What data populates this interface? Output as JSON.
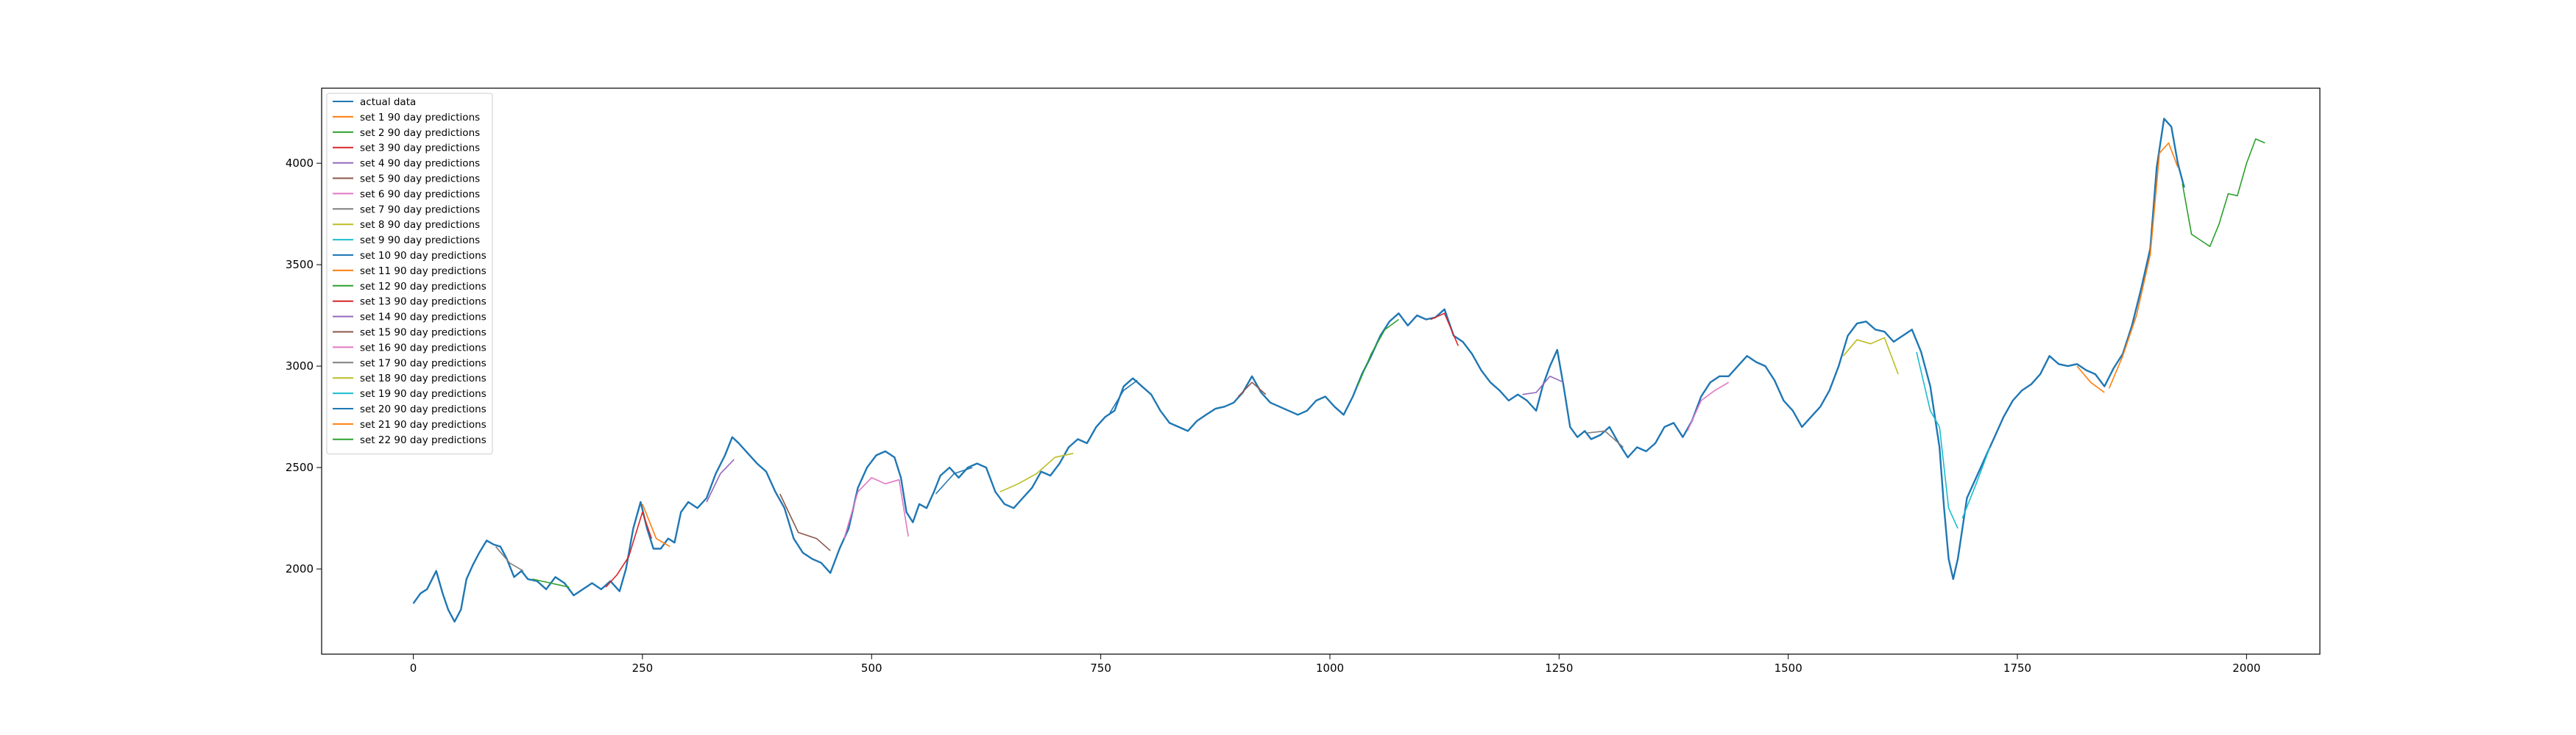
{
  "chart_data": {
    "type": "line",
    "title": "",
    "xlabel": "",
    "ylabel": "",
    "xlim": [
      -100,
      2080
    ],
    "ylim": [
      1580,
      4370
    ],
    "xticks": [
      0,
      250,
      500,
      750,
      1000,
      1250,
      1500,
      1750,
      2000
    ],
    "yticks": [
      2000,
      2500,
      3000,
      3500,
      4000
    ],
    "grid": false,
    "legend_position": "top-left",
    "actual": {
      "name": "actual data",
      "color": "#1f77b4",
      "points": [
        [
          0,
          1830
        ],
        [
          8,
          1880
        ],
        [
          15,
          1900
        ],
        [
          25,
          1990
        ],
        [
          32,
          1880
        ],
        [
          38,
          1800
        ],
        [
          45,
          1740
        ],
        [
          52,
          1800
        ],
        [
          58,
          1950
        ],
        [
          65,
          2020
        ],
        [
          72,
          2080
        ],
        [
          80,
          2140
        ],
        [
          88,
          2120
        ],
        [
          95,
          2110
        ],
        [
          102,
          2050
        ],
        [
          110,
          1960
        ],
        [
          118,
          1990
        ],
        [
          125,
          1950
        ],
        [
          135,
          1940
        ],
        [
          145,
          1900
        ],
        [
          155,
          1960
        ],
        [
          165,
          1930
        ],
        [
          175,
          1870
        ],
        [
          185,
          1900
        ],
        [
          195,
          1930
        ],
        [
          205,
          1900
        ],
        [
          215,
          1940
        ],
        [
          225,
          1890
        ],
        [
          232,
          2000
        ],
        [
          240,
          2200
        ],
        [
          248,
          2330
        ],
        [
          255,
          2200
        ],
        [
          262,
          2100
        ],
        [
          270,
          2100
        ],
        [
          278,
          2150
        ],
        [
          285,
          2130
        ],
        [
          292,
          2280
        ],
        [
          300,
          2330
        ],
        [
          310,
          2300
        ],
        [
          320,
          2350
        ],
        [
          330,
          2470
        ],
        [
          340,
          2560
        ],
        [
          348,
          2650
        ],
        [
          355,
          2620
        ],
        [
          365,
          2570
        ],
        [
          375,
          2520
        ],
        [
          385,
          2480
        ],
        [
          395,
          2380
        ],
        [
          405,
          2300
        ],
        [
          415,
          2150
        ],
        [
          425,
          2080
        ],
        [
          435,
          2050
        ],
        [
          445,
          2030
        ],
        [
          455,
          1980
        ],
        [
          465,
          2100
        ],
        [
          475,
          2200
        ],
        [
          485,
          2400
        ],
        [
          495,
          2500
        ],
        [
          505,
          2560
        ],
        [
          515,
          2580
        ],
        [
          525,
          2550
        ],
        [
          532,
          2450
        ],
        [
          538,
          2280
        ],
        [
          545,
          2230
        ],
        [
          552,
          2320
        ],
        [
          560,
          2300
        ],
        [
          568,
          2380
        ],
        [
          575,
          2460
        ],
        [
          585,
          2500
        ],
        [
          595,
          2450
        ],
        [
          605,
          2500
        ],
        [
          615,
          2520
        ],
        [
          625,
          2500
        ],
        [
          635,
          2380
        ],
        [
          645,
          2320
        ],
        [
          655,
          2300
        ],
        [
          665,
          2350
        ],
        [
          675,
          2400
        ],
        [
          685,
          2480
        ],
        [
          695,
          2460
        ],
        [
          705,
          2520
        ],
        [
          715,
          2600
        ],
        [
          725,
          2640
        ],
        [
          735,
          2620
        ],
        [
          745,
          2700
        ],
        [
          755,
          2750
        ],
        [
          765,
          2780
        ],
        [
          775,
          2900
        ],
        [
          785,
          2940
        ],
        [
          795,
          2900
        ],
        [
          805,
          2860
        ],
        [
          815,
          2780
        ],
        [
          825,
          2720
        ],
        [
          835,
          2700
        ],
        [
          845,
          2680
        ],
        [
          855,
          2730
        ],
        [
          865,
          2760
        ],
        [
          875,
          2790
        ],
        [
          885,
          2800
        ],
        [
          895,
          2820
        ],
        [
          905,
          2870
        ],
        [
          915,
          2950
        ],
        [
          925,
          2870
        ],
        [
          935,
          2820
        ],
        [
          945,
          2800
        ],
        [
          955,
          2780
        ],
        [
          965,
          2760
        ],
        [
          975,
          2780
        ],
        [
          985,
          2830
        ],
        [
          995,
          2850
        ],
        [
          1005,
          2800
        ],
        [
          1015,
          2760
        ],
        [
          1025,
          2850
        ],
        [
          1035,
          2960
        ],
        [
          1045,
          3050
        ],
        [
          1055,
          3150
        ],
        [
          1065,
          3220
        ],
        [
          1075,
          3260
        ],
        [
          1085,
          3200
        ],
        [
          1095,
          3250
        ],
        [
          1105,
          3230
        ],
        [
          1115,
          3240
        ],
        [
          1125,
          3280
        ],
        [
          1135,
          3150
        ],
        [
          1145,
          3120
        ],
        [
          1155,
          3060
        ],
        [
          1165,
          2980
        ],
        [
          1175,
          2920
        ],
        [
          1185,
          2880
        ],
        [
          1195,
          2830
        ],
        [
          1205,
          2860
        ],
        [
          1215,
          2830
        ],
        [
          1225,
          2780
        ],
        [
          1232,
          2900
        ],
        [
          1240,
          3000
        ],
        [
          1248,
          3080
        ],
        [
          1255,
          2900
        ],
        [
          1262,
          2700
        ],
        [
          1270,
          2650
        ],
        [
          1278,
          2680
        ],
        [
          1285,
          2640
        ],
        [
          1295,
          2660
        ],
        [
          1305,
          2700
        ],
        [
          1315,
          2620
        ],
        [
          1325,
          2550
        ],
        [
          1335,
          2600
        ],
        [
          1345,
          2580
        ],
        [
          1355,
          2620
        ],
        [
          1365,
          2700
        ],
        [
          1375,
          2720
        ],
        [
          1385,
          2650
        ],
        [
          1395,
          2730
        ],
        [
          1405,
          2850
        ],
        [
          1415,
          2920
        ],
        [
          1425,
          2950
        ],
        [
          1435,
          2950
        ],
        [
          1445,
          3000
        ],
        [
          1455,
          3050
        ],
        [
          1465,
          3020
        ],
        [
          1475,
          3000
        ],
        [
          1485,
          2930
        ],
        [
          1495,
          2830
        ],
        [
          1505,
          2780
        ],
        [
          1515,
          2700
        ],
        [
          1525,
          2750
        ],
        [
          1535,
          2800
        ],
        [
          1545,
          2880
        ],
        [
          1555,
          3000
        ],
        [
          1565,
          3150
        ],
        [
          1575,
          3210
        ],
        [
          1585,
          3220
        ],
        [
          1595,
          3180
        ],
        [
          1605,
          3170
        ],
        [
          1615,
          3120
        ],
        [
          1625,
          3150
        ],
        [
          1635,
          3180
        ],
        [
          1645,
          3070
        ],
        [
          1655,
          2900
        ],
        [
          1660,
          2750
        ],
        [
          1665,
          2600
        ],
        [
          1670,
          2300
        ],
        [
          1675,
          2050
        ],
        [
          1680,
          1950
        ],
        [
          1685,
          2050
        ],
        [
          1690,
          2200
        ],
        [
          1695,
          2350
        ],
        [
          1705,
          2450
        ],
        [
          1715,
          2550
        ],
        [
          1725,
          2650
        ],
        [
          1735,
          2750
        ],
        [
          1745,
          2830
        ],
        [
          1755,
          2880
        ],
        [
          1765,
          2910
        ],
        [
          1775,
          2960
        ],
        [
          1785,
          3050
        ],
        [
          1795,
          3010
        ],
        [
          1805,
          3000
        ],
        [
          1815,
          3010
        ],
        [
          1825,
          2980
        ],
        [
          1835,
          2960
        ],
        [
          1845,
          2900
        ],
        [
          1855,
          2990
        ],
        [
          1865,
          3060
        ],
        [
          1875,
          3200
        ],
        [
          1885,
          3380
        ],
        [
          1895,
          3580
        ],
        [
          1902,
          3980
        ],
        [
          1910,
          4220
        ],
        [
          1918,
          4180
        ],
        [
          1925,
          4000
        ],
        [
          1932,
          3880
        ]
      ]
    },
    "series": [
      {
        "name": "set 1 90 day predictions",
        "color": "#ff7f0e",
        "points": [
          [
            1850,
            2890
          ],
          [
            1865,
            3050
          ],
          [
            1880,
            3250
          ],
          [
            1895,
            3550
          ],
          [
            1905,
            4050
          ],
          [
            1915,
            4100
          ],
          [
            1925,
            3980
          ]
        ]
      },
      {
        "name": "set 2 90 day predictions",
        "color": "#2ca02c",
        "points": [
          [
            1930,
            3900
          ],
          [
            1940,
            3650
          ],
          [
            1950,
            3620
          ],
          [
            1960,
            3590
          ],
          [
            1970,
            3700
          ],
          [
            1980,
            3850
          ],
          [
            1990,
            3840
          ],
          [
            2000,
            4000
          ],
          [
            2010,
            4120
          ],
          [
            2020,
            4100
          ]
        ]
      },
      {
        "name": "set 3 90 day predictions",
        "color": "#d62728",
        "points": [
          [
            210,
            1910
          ],
          [
            222,
            1970
          ],
          [
            235,
            2060
          ],
          [
            250,
            2280
          ],
          [
            260,
            2150
          ]
        ]
      },
      {
        "name": "set 4 90 day predictions",
        "color": "#9467bd",
        "points": [
          [
            1210,
            2860
          ],
          [
            1225,
            2870
          ],
          [
            1240,
            2950
          ],
          [
            1255,
            2920
          ]
        ]
      },
      {
        "name": "set 5 90 day predictions",
        "color": "#8c564b",
        "points": [
          [
            400,
            2370
          ],
          [
            420,
            2180
          ],
          [
            440,
            2150
          ],
          [
            455,
            2090
          ]
        ]
      },
      {
        "name": "set 6 90 day predictions",
        "color": "#e377c2",
        "points": [
          [
            470,
            2150
          ],
          [
            485,
            2380
          ],
          [
            500,
            2450
          ],
          [
            515,
            2420
          ],
          [
            530,
            2440
          ],
          [
            540,
            2160
          ]
        ]
      },
      {
        "name": "set 7 90 day predictions",
        "color": "#7f7f7f",
        "points": [
          [
            90,
            2110
          ],
          [
            105,
            2030
          ],
          [
            120,
            1990
          ]
        ]
      },
      {
        "name": "set 8 90 day predictions",
        "color": "#bcbd22",
        "points": [
          [
            640,
            2380
          ],
          [
            660,
            2420
          ],
          [
            680,
            2470
          ],
          [
            700,
            2550
          ],
          [
            720,
            2570
          ]
        ]
      },
      {
        "name": "set 9 90 day predictions",
        "color": "#17becf",
        "points": [
          [
            1640,
            3070
          ],
          [
            1655,
            2780
          ],
          [
            1665,
            2700
          ],
          [
            1675,
            2300
          ],
          [
            1685,
            2200
          ]
        ]
      },
      {
        "name": "set 10 90 day predictions",
        "color": "#1f77b4",
        "points": [
          [
            760,
            2770
          ],
          [
            775,
            2880
          ],
          [
            790,
            2930
          ]
        ]
      },
      {
        "name": "set 11 90 day predictions",
        "color": "#ff7f0e",
        "points": [
          [
            250,
            2320
          ],
          [
            265,
            2150
          ],
          [
            280,
            2110
          ]
        ]
      },
      {
        "name": "set 12 90 day predictions",
        "color": "#2ca02c",
        "points": [
          [
            1030,
            2900
          ],
          [
            1045,
            3060
          ],
          [
            1060,
            3180
          ],
          [
            1075,
            3230
          ]
        ]
      },
      {
        "name": "set 13 90 day predictions",
        "color": "#d62728",
        "points": [
          [
            1110,
            3230
          ],
          [
            1125,
            3260
          ],
          [
            1140,
            3100
          ]
        ]
      },
      {
        "name": "set 14 90 day predictions",
        "color": "#9467bd",
        "points": [
          [
            320,
            2330
          ],
          [
            335,
            2470
          ],
          [
            350,
            2540
          ]
        ]
      },
      {
        "name": "set 15 90 day predictions",
        "color": "#8c564b",
        "points": [
          [
            900,
            2850
          ],
          [
            915,
            2920
          ],
          [
            930,
            2860
          ]
        ]
      },
      {
        "name": "set 16 90 day predictions",
        "color": "#e377c2",
        "points": [
          [
            1390,
            2680
          ],
          [
            1405,
            2830
          ],
          [
            1420,
            2880
          ],
          [
            1435,
            2920
          ]
        ]
      },
      {
        "name": "set 17 90 day predictions",
        "color": "#7f7f7f",
        "points": [
          [
            1280,
            2670
          ],
          [
            1300,
            2680
          ],
          [
            1320,
            2600
          ]
        ]
      },
      {
        "name": "set 18 90 day predictions",
        "color": "#bcbd22",
        "points": [
          [
            1560,
            3050
          ],
          [
            1575,
            3130
          ],
          [
            1590,
            3110
          ],
          [
            1605,
            3140
          ],
          [
            1620,
            2960
          ]
        ]
      },
      {
        "name": "set 19 90 day predictions",
        "color": "#17becf",
        "points": [
          [
            1690,
            2250
          ],
          [
            1705,
            2420
          ],
          [
            1720,
            2600
          ]
        ]
      },
      {
        "name": "set 20 90 day predictions",
        "color": "#1f77b4",
        "points": [
          [
            570,
            2370
          ],
          [
            590,
            2470
          ],
          [
            610,
            2500
          ]
        ]
      },
      {
        "name": "set 21 90 day predictions",
        "color": "#ff7f0e",
        "points": [
          [
            1815,
            3000
          ],
          [
            1830,
            2920
          ],
          [
            1845,
            2870
          ]
        ]
      },
      {
        "name": "set 22 90 day predictions",
        "color": "#2ca02c",
        "points": [
          [
            130,
            1950
          ],
          [
            150,
            1930
          ],
          [
            170,
            1910
          ]
        ]
      }
    ]
  }
}
